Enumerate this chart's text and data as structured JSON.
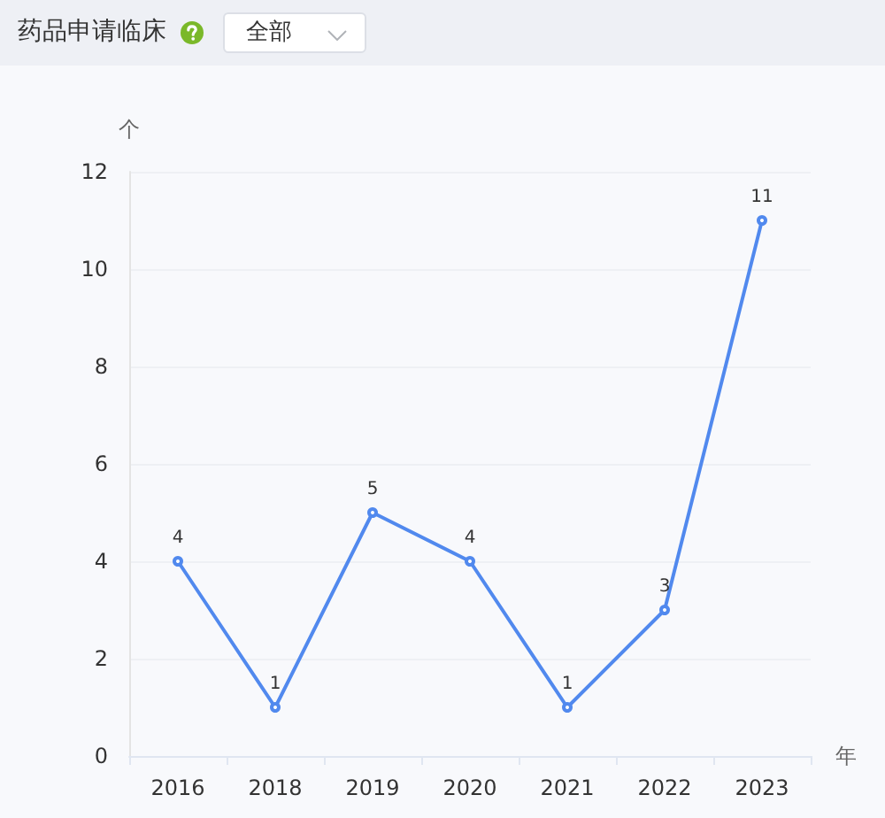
{
  "chart_data": {
    "type": "line",
    "title": "药品申请临床",
    "annotations": [
      "全部"
    ],
    "xlabel": "年",
    "ylabel": "个",
    "categories": [
      "2016",
      "2018",
      "2019",
      "2020",
      "2021",
      "2022",
      "2023"
    ],
    "series": [
      {
        "color": "#5189ee",
        "values": [
          4,
          1,
          5,
          4,
          1,
          3,
          11
        ]
      }
    ],
    "ylim": [
      0,
      12
    ],
    "yticks": [
      0,
      2,
      4,
      6,
      8,
      10,
      12
    ],
    "grid": "y",
    "marker": "circle",
    "line_style": "solid",
    "data_labels": true
  }
}
